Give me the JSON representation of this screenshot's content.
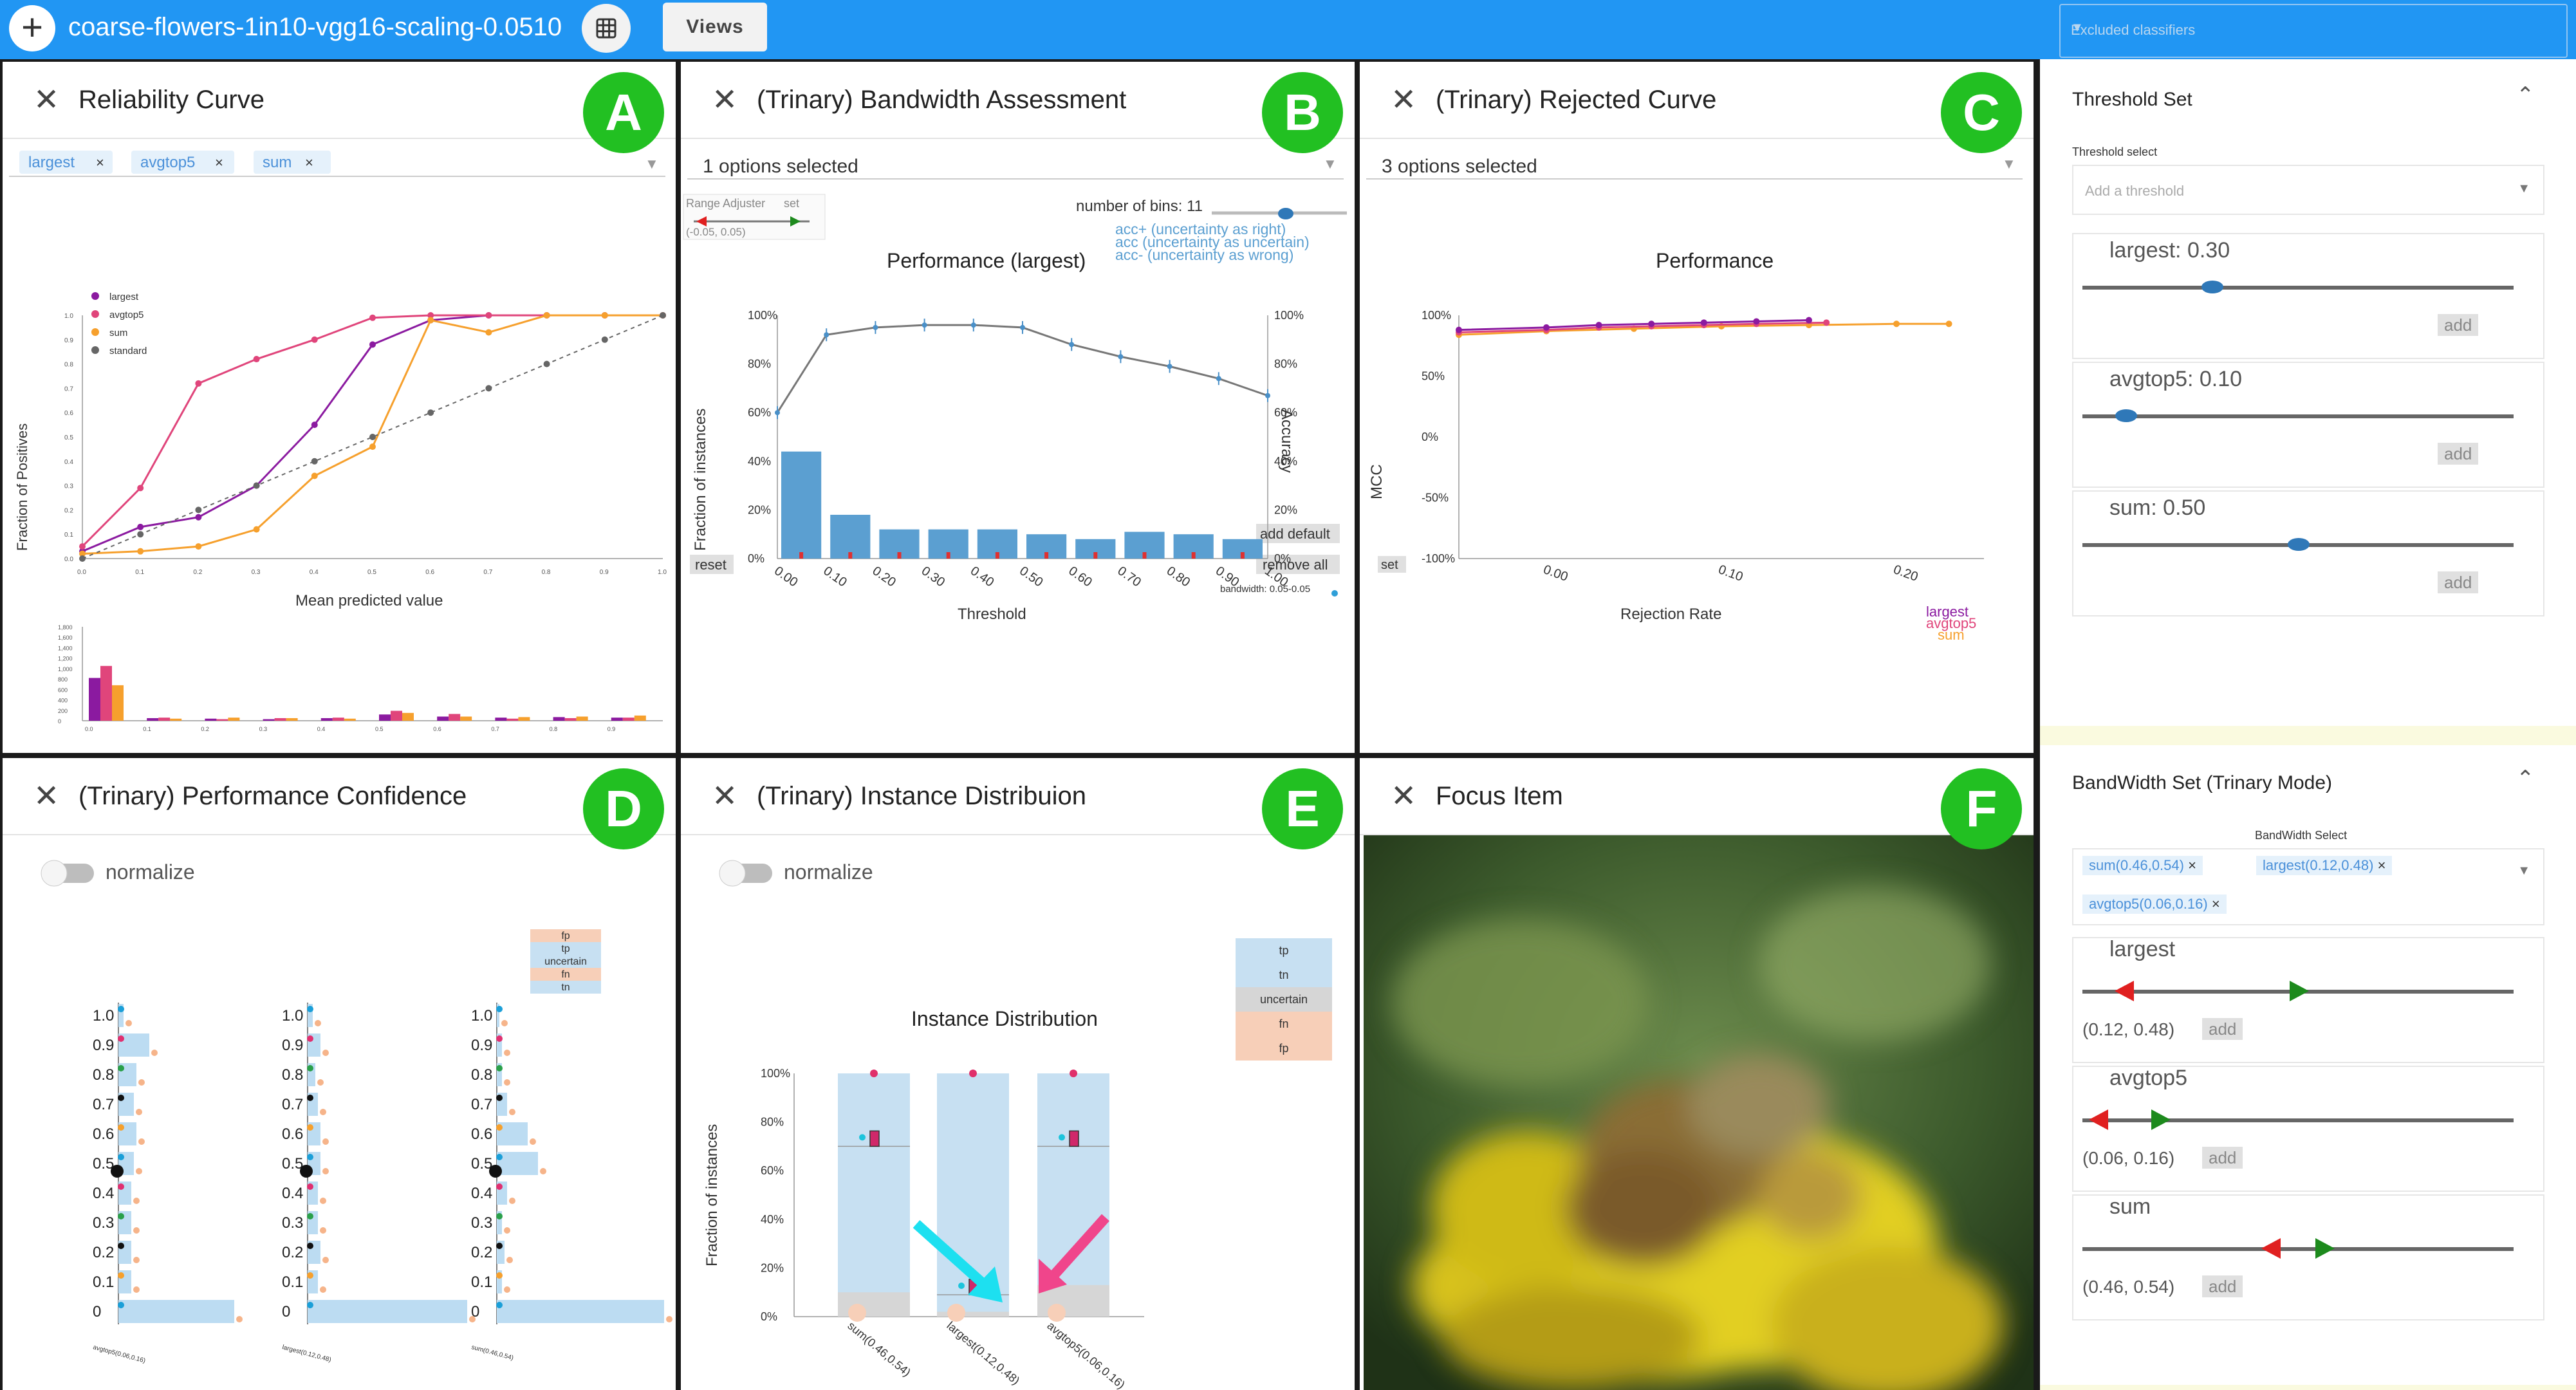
{
  "header": {
    "add_label": "+",
    "title": "coarse-flowers-1in10-vgg16-scaling-0.0510",
    "views_label": "Views",
    "excluded_placeholder": "Excluded classifiers"
  },
  "colors": {
    "topbar": "#2196f3",
    "badge": "#22c022",
    "largest": "#8b1aa0",
    "avgtop5": "#e0457b",
    "sum": "#f6a02d",
    "standard": "#666666",
    "bar_blue": "#5b9fd1",
    "tp": "#c7e0f2",
    "uncertain": "#d6d6d6",
    "fp_fn": "#f7cfb8"
  },
  "panels": {
    "A": {
      "badge": "A",
      "title": "Reliability Curve",
      "chips": [
        "largest",
        "avgtop5",
        "sum"
      ],
      "legend": [
        "largest",
        "avgtop5",
        "sum",
        "standard"
      ],
      "xlabel": "Mean predicted value",
      "ylabel": "Fraction of Positives",
      "xticks": [
        "0.0",
        "0.1",
        "0.2",
        "0.3",
        "0.4",
        "0.5",
        "0.6",
        "0.7",
        "0.8",
        "0.9",
        "1.0"
      ],
      "yticks": [
        "0.0",
        "0.1",
        "0.2",
        "0.3",
        "0.4",
        "0.5",
        "0.6",
        "0.7",
        "0.8",
        "0.9",
        "1.0"
      ],
      "hist_yticks": [
        "0",
        "200",
        "400",
        "600",
        "800",
        "1,000",
        "1,200",
        "1,400",
        "1,600",
        "1,800"
      ]
    },
    "B": {
      "badge": "B",
      "title": "(Trinary) Bandwidth Assessment",
      "select": "1 options selected",
      "range_label": "Range Adjuster",
      "set_label": "set",
      "range_value": "(-0.05, 0.05)",
      "bins_label": "number of bins: 11",
      "legend": [
        "acc+ (uncertainty as right)",
        "acc (uncertainty as uncertain)",
        "acc- (uncertainty as wrong)"
      ],
      "chart_title": "Performance (largest)",
      "xlabel": "Threshold",
      "ylabel_left": "Fraction of instances",
      "ylabel_right": "Accuracy",
      "xticks": [
        "0.00",
        "0.10",
        "0.20",
        "0.30",
        "0.40",
        "0.50",
        "0.60",
        "0.70",
        "0.80",
        "0.90",
        "1.00"
      ],
      "yticks": [
        "0%",
        "20%",
        "40%",
        "60%",
        "80%",
        "100%"
      ],
      "reset_label": "reset",
      "add_default_label": "add default",
      "remove_all_label": "remove all",
      "bandwidth_label": "bandwidth: 0.05-0.05"
    },
    "C": {
      "badge": "C",
      "title": "(Trinary) Rejected Curve",
      "select": "3 options selected",
      "chart_title": "Performance",
      "xlabel": "Rejection Rate",
      "ylabel": "MCC",
      "yticks": [
        "100%",
        "50%",
        "0%",
        "-50%",
        "-100%"
      ],
      "xticks": [
        "0.00",
        "0.10",
        "0.20"
      ],
      "set_label": "set",
      "legend": [
        "largest",
        "avgtop5",
        "sum"
      ]
    },
    "D": {
      "badge": "D",
      "title": "(Trinary) Performance Confidence",
      "toggle_label": "normalize",
      "legend": [
        "fp",
        "tp",
        "uncertain",
        "fn",
        "tn"
      ],
      "yticks": [
        "1.0",
        "0.9",
        "0.8",
        "0.7",
        "0.6",
        "0.5",
        "0.4",
        "0.3",
        "0.2",
        "0.1",
        "0"
      ],
      "groups": [
        "avgtop5(0.06,0.16)",
        "largest(0.12,0.48)",
        "sum(0.46,0.54)"
      ]
    },
    "E": {
      "badge": "E",
      "title": "(Trinary) Instance Distribuion",
      "toggle_label": "normalize",
      "legend": [
        "tp",
        "tn",
        "uncertain",
        "fn",
        "fp"
      ],
      "chart_title": "Instance Distribution",
      "ylabel": "Fraction of instances",
      "yticks": [
        "100%",
        "80%",
        "60%",
        "40%",
        "20%",
        "0%"
      ],
      "categories": [
        "sum(0.46,0.54)",
        "largest(0.12,0.48)",
        "avgtop5(0.06,0.16)"
      ]
    },
    "F": {
      "badge": "F",
      "title": "Focus Item"
    }
  },
  "sidebar": {
    "threshold_set": {
      "title": "Threshold Set",
      "select_label": "Threshold select",
      "placeholder": "Add a threshold",
      "add_label": "add",
      "items": [
        {
          "label": "largest: 0.30",
          "value": 0.3
        },
        {
          "label": "avgtop5: 0.10",
          "value": 0.1
        },
        {
          "label": "sum: 0.50",
          "value": 0.5
        }
      ]
    },
    "bandwidth_set": {
      "title": "BandWidth Set (Trinary Mode)",
      "select_label": "BandWidth Select",
      "chips": [
        "sum(0.46,0.54)",
        "largest(0.12,0.48)",
        "avgtop5(0.06,0.16)"
      ],
      "add_label": "add",
      "items": [
        {
          "label": "largest",
          "range": "(0.12, 0.48)",
          "low": 0.12,
          "high": 0.48
        },
        {
          "label": "avgtop5",
          "range": "(0.06, 0.16)",
          "low": 0.06,
          "high": 0.16
        },
        {
          "label": "sum",
          "range": "(0.46, 0.54)",
          "low": 0.46,
          "high": 0.54
        }
      ]
    }
  },
  "chart_data": [
    {
      "type": "line",
      "title": "",
      "xlabel": "Mean predicted value",
      "ylabel": "Fraction of Positives",
      "xlim": [
        0,
        1
      ],
      "ylim": [
        0,
        1
      ],
      "series": [
        {
          "name": "largest",
          "x": [
            0.0,
            0.1,
            0.2,
            0.3,
            0.4,
            0.5,
            0.6,
            0.7,
            0.8,
            0.9,
            1.0
          ],
          "y": [
            0.03,
            0.13,
            0.17,
            0.3,
            0.55,
            0.88,
            0.98,
            1.0,
            1.0,
            1.0,
            1.0
          ]
        },
        {
          "name": "avgtop5",
          "x": [
            0.0,
            0.1,
            0.2,
            0.3,
            0.4,
            0.5,
            0.6,
            0.7,
            0.8,
            0.9,
            1.0
          ],
          "y": [
            0.05,
            0.29,
            0.72,
            0.82,
            0.9,
            0.99,
            1.0,
            1.0,
            1.0,
            1.0,
            1.0
          ]
        },
        {
          "name": "sum",
          "x": [
            0.0,
            0.1,
            0.2,
            0.3,
            0.4,
            0.5,
            0.6,
            0.7,
            0.8,
            0.9,
            1.0
          ],
          "y": [
            0.02,
            0.03,
            0.05,
            0.12,
            0.34,
            0.46,
            0.98,
            0.93,
            1.0,
            1.0,
            1.0
          ]
        },
        {
          "name": "standard",
          "x": [
            0.0,
            0.1,
            0.2,
            0.3,
            0.4,
            0.5,
            0.6,
            0.7,
            0.8,
            0.9,
            1.0
          ],
          "y": [
            0.0,
            0.1,
            0.2,
            0.3,
            0.4,
            0.5,
            0.6,
            0.7,
            0.8,
            0.9,
            1.0
          ]
        }
      ]
    },
    {
      "type": "bar",
      "title": "",
      "categories": [
        "0.0",
        "0.1",
        "0.2",
        "0.3",
        "0.4",
        "0.5",
        "0.6",
        "0.7",
        "0.8",
        "0.9"
      ],
      "ylim": [
        0,
        1800
      ],
      "series": [
        {
          "name": "largest",
          "values": [
            820,
            50,
            40,
            30,
            50,
            120,
            80,
            60,
            70,
            60
          ]
        },
        {
          "name": "avgtop5",
          "values": [
            1050,
            60,
            30,
            50,
            60,
            190,
            130,
            40,
            50,
            60
          ]
        },
        {
          "name": "sum",
          "values": [
            680,
            40,
            60,
            50,
            40,
            150,
            80,
            70,
            80,
            100
          ]
        }
      ]
    },
    {
      "type": "bar",
      "title": "Performance (largest)",
      "xlabel": "Threshold",
      "ylabel": "Fraction of instances",
      "ylim": [
        0,
        1
      ],
      "categories": [
        "0.00",
        "0.10",
        "0.20",
        "0.30",
        "0.40",
        "0.50",
        "0.60",
        "0.70",
        "0.80",
        "0.90"
      ],
      "values": [
        0.44,
        0.18,
        0.12,
        0.12,
        0.12,
        0.1,
        0.08,
        0.11,
        0.1,
        0.08
      ],
      "accuracy": [
        0.6,
        0.92,
        0.95,
        0.96,
        0.96,
        0.95,
        0.88,
        0.83,
        0.79,
        0.74,
        0.67
      ]
    },
    {
      "type": "line",
      "title": "Performance",
      "xlabel": "Rejection Rate",
      "ylabel": "MCC",
      "xlim": [
        -0.05,
        0.25
      ],
      "ylim": [
        -1,
        1
      ],
      "series": [
        {
          "name": "largest",
          "x": [
            -0.05,
            0.0,
            0.03,
            0.06,
            0.09,
            0.12,
            0.15
          ],
          "y": [
            0.88,
            0.9,
            0.92,
            0.93,
            0.94,
            0.95,
            0.96
          ]
        },
        {
          "name": "avgtop5",
          "x": [
            -0.05,
            0.0,
            0.03,
            0.06,
            0.09,
            0.12,
            0.16
          ],
          "y": [
            0.86,
            0.88,
            0.9,
            0.91,
            0.92,
            0.93,
            0.94
          ]
        },
        {
          "name": "sum",
          "x": [
            -0.05,
            0.0,
            0.05,
            0.1,
            0.15,
            0.2,
            0.23
          ],
          "y": [
            0.84,
            0.87,
            0.89,
            0.91,
            0.92,
            0.93,
            0.93
          ]
        }
      ]
    },
    {
      "type": "bar",
      "title": "",
      "categories": [
        "1.0",
        "0.9",
        "0.8",
        "0.7",
        "0.6",
        "0.5",
        "0.4",
        "0.3",
        "0.2",
        "0.1",
        "0"
      ],
      "series": [
        {
          "name": "avgtop5(0.06,0.16)",
          "values": [
            0.02,
            0.12,
            0.07,
            0.06,
            0.07,
            0.06,
            0.05,
            0.05,
            0.05,
            0.05,
            0.45
          ]
        },
        {
          "name": "largest(0.12,0.48)",
          "values": [
            0.02,
            0.05,
            0.03,
            0.04,
            0.05,
            0.05,
            0.04,
            0.04,
            0.05,
            0.04,
            0.62
          ]
        },
        {
          "name": "sum(0.46,0.54)",
          "values": [
            0.01,
            0.02,
            0.02,
            0.04,
            0.12,
            0.16,
            0.04,
            0.02,
            0.03,
            0.02,
            0.65
          ]
        }
      ]
    },
    {
      "type": "bar",
      "title": "Instance Distribution",
      "ylabel": "Fraction of instances",
      "ylim": [
        0,
        1
      ],
      "categories": [
        "sum(0.46,0.54)",
        "largest(0.12,0.48)",
        "avgtop5(0.06,0.16)"
      ],
      "series": [
        {
          "name": "uncertain",
          "values": [
            0.1,
            0.02,
            0.13
          ]
        },
        {
          "name": "tp",
          "values": [
            0.9,
            0.98,
            0.87
          ]
        }
      ],
      "markers": [
        0.7,
        0.09,
        0.7
      ]
    }
  ]
}
